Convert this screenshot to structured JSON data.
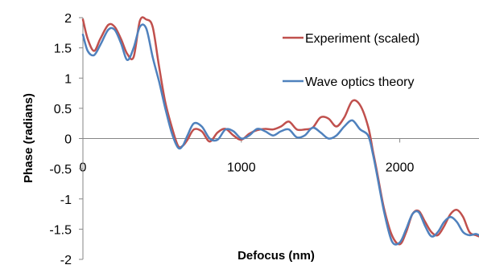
{
  "chart_data": {
    "type": "line",
    "title": "",
    "xlabel": "Defocus (nm)",
    "ylabel": "Phase (radians)",
    "xlim": [
      0,
      2500
    ],
    "ylim": [
      -2,
      2
    ],
    "xticks": [
      0,
      1000,
      2000
    ],
    "xtick_labels": [
      "0",
      "1000",
      "2000"
    ],
    "yticks": [
      2,
      1.5,
      1,
      0.5,
      0,
      -0.5,
      -1,
      -1.5,
      -2
    ],
    "ytick_labels": [
      "2",
      "1.5",
      "1",
      "0.5",
      "0",
      "-0.5",
      "-1",
      "-1.5",
      "-2"
    ],
    "grid": false,
    "legend_position": "top-right",
    "series": [
      {
        "name": "Experiment (scaled)",
        "color": "#c0504d",
        "x": [
          0,
          30,
          70,
          110,
          160,
          200,
          240,
          280,
          320,
          360,
          400,
          440,
          480,
          520,
          560,
          600,
          630,
          660,
          700,
          750,
          800,
          850,
          900,
          950,
          1000,
          1050,
          1100,
          1150,
          1200,
          1250,
          1300,
          1350,
          1400,
          1450,
          1500,
          1550,
          1600,
          1650,
          1700,
          1750,
          1800,
          1830,
          1860,
          1900,
          1950,
          2000,
          2040,
          2080,
          2120,
          2160,
          2200,
          2240,
          2280,
          2320,
          2360,
          2400,
          2440,
          2480,
          2500
        ],
        "y": [
          1.97,
          1.65,
          1.45,
          1.65,
          1.88,
          1.85,
          1.65,
          1.4,
          1.35,
          1.95,
          1.97,
          1.85,
          1.2,
          0.6,
          0.2,
          -0.12,
          -0.12,
          -0.02,
          0.15,
          0.12,
          -0.05,
          0.1,
          0.16,
          0.05,
          -0.02,
          0.08,
          0.14,
          0.16,
          0.15,
          0.2,
          0.28,
          0.15,
          0.15,
          0.18,
          0.35,
          0.33,
          0.2,
          0.35,
          0.62,
          0.55,
          0.2,
          -0.2,
          -0.6,
          -1.15,
          -1.6,
          -1.75,
          -1.55,
          -1.25,
          -1.2,
          -1.38,
          -1.55,
          -1.6,
          -1.45,
          -1.25,
          -1.18,
          -1.3,
          -1.55,
          -1.6,
          -1.62
        ]
      },
      {
        "name": "Wave optics theory",
        "color": "#4f81bd",
        "x": [
          0,
          30,
          70,
          110,
          160,
          200,
          240,
          280,
          320,
          360,
          400,
          440,
          480,
          520,
          560,
          600,
          630,
          660,
          700,
          750,
          800,
          850,
          900,
          950,
          1000,
          1050,
          1100,
          1150,
          1200,
          1250,
          1300,
          1350,
          1400,
          1450,
          1500,
          1550,
          1600,
          1650,
          1700,
          1750,
          1800,
          1830,
          1860,
          1900,
          1950,
          2000,
          2040,
          2080,
          2120,
          2160,
          2200,
          2240,
          2280,
          2320,
          2360,
          2400,
          2440,
          2480,
          2500
        ],
        "y": [
          1.72,
          1.45,
          1.38,
          1.55,
          1.8,
          1.8,
          1.58,
          1.3,
          1.5,
          1.85,
          1.82,
          1.35,
          0.95,
          0.5,
          0.1,
          -0.15,
          -0.12,
          0.05,
          0.25,
          0.2,
          0.0,
          -0.02,
          0.15,
          0.12,
          0.0,
          0.05,
          0.16,
          0.12,
          0.05,
          0.12,
          0.15,
          0.02,
          0.05,
          0.18,
          0.1,
          0.0,
          0.05,
          0.2,
          0.3,
          0.15,
          0.05,
          -0.25,
          -0.65,
          -1.2,
          -1.7,
          -1.72,
          -1.5,
          -1.25,
          -1.22,
          -1.45,
          -1.62,
          -1.55,
          -1.38,
          -1.3,
          -1.38,
          -1.55,
          -1.6,
          -1.58,
          -1.6
        ]
      }
    ]
  }
}
